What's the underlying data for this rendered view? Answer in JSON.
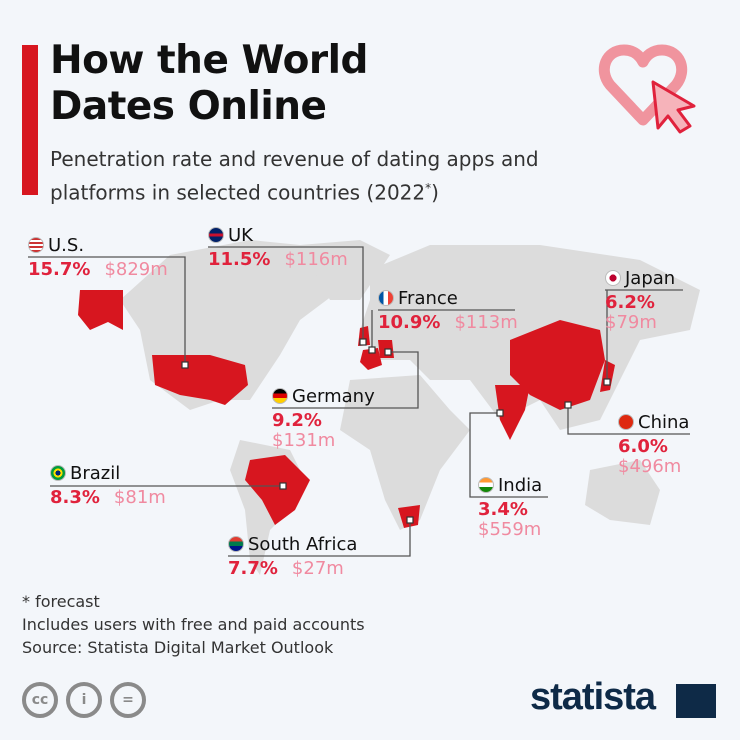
{
  "title": "How the World Dates Online",
  "subtitle": "Penetration rate and revenue of dating apps and platforms in selected countries (2022",
  "subtitle_mark": "*",
  "subtitle_end": ")",
  "colors": {
    "accent": "#d7161f",
    "penetration": "#e0223c",
    "revenue": "#f08aa0",
    "land": "#dcdcdc"
  },
  "countries": [
    {
      "name": "U.S.",
      "penetration": "15.7%",
      "revenue": "$829m",
      "flag": "us-flag-icon"
    },
    {
      "name": "UK",
      "penetration": "11.5%",
      "revenue": "$116m",
      "flag": "uk-flag-icon"
    },
    {
      "name": "France",
      "penetration": "10.9%",
      "revenue": "$113m",
      "flag": "france-flag-icon"
    },
    {
      "name": "Germany",
      "penetration": "9.2%",
      "revenue": "$131m",
      "flag": "germany-flag-icon"
    },
    {
      "name": "Japan",
      "penetration": "6.2%",
      "revenue": "$79m",
      "flag": "japan-flag-icon"
    },
    {
      "name": "China",
      "penetration": "6.0%",
      "revenue": "$496m",
      "flag": "china-flag-icon"
    },
    {
      "name": "India",
      "penetration": "3.4%",
      "revenue": "$559m",
      "flag": "india-flag-icon"
    },
    {
      "name": "Brazil",
      "penetration": "8.3%",
      "revenue": "$81m",
      "flag": "brazil-flag-icon"
    },
    {
      "name": "South Africa",
      "penetration": "7.7%",
      "revenue": "$27m",
      "flag": "south-africa-flag-icon"
    }
  ],
  "notes": [
    "* forecast",
    "Includes users with free and paid accounts",
    "Source: Statista Digital Market Outlook"
  ],
  "license_icons": [
    "cc-icon",
    "attribution-icon",
    "no-derivatives-icon"
  ],
  "logo": "statista"
}
